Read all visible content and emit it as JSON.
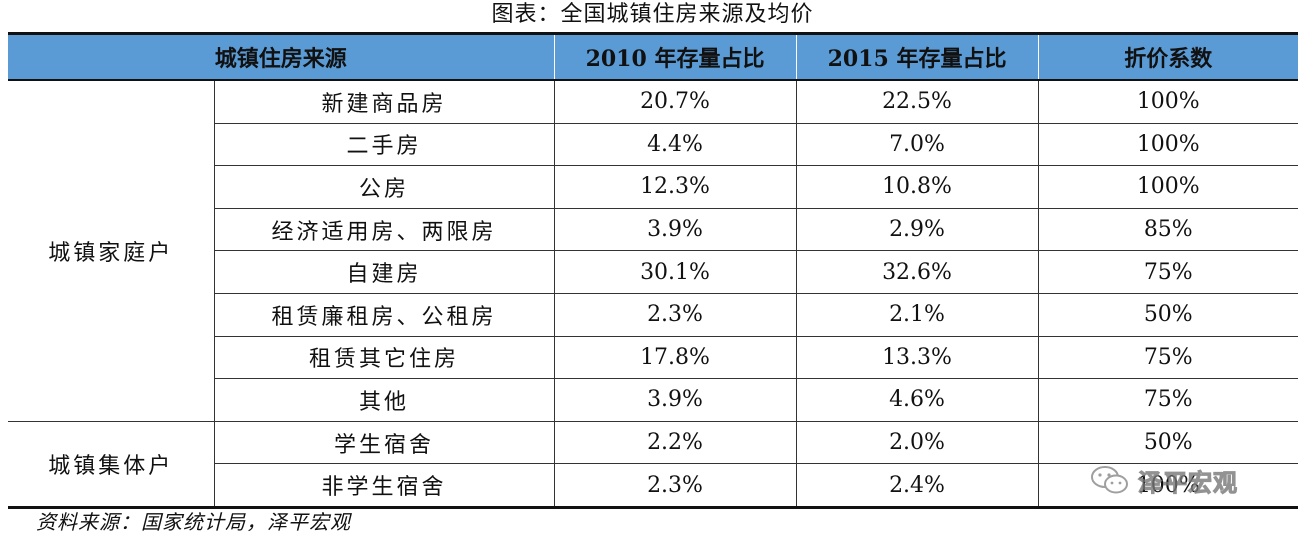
{
  "title": "图表：全国城镇住房来源及均价",
  "table": {
    "headers": [
      "城镇住房来源",
      "2010 年存量占比",
      "2015 年存量占比",
      "折价系数"
    ],
    "groups": [
      {
        "name": "城镇家庭户",
        "rows": [
          {
            "source": "新建商品房",
            "y2010": "20.7%",
            "y2015": "22.5%",
            "coef": "100%"
          },
          {
            "source": "二手房",
            "y2010": "4.4%",
            "y2015": "7.0%",
            "coef": "100%"
          },
          {
            "source": "公房",
            "y2010": "12.3%",
            "y2015": "10.8%",
            "coef": "100%"
          },
          {
            "source": "经济适用房、两限房",
            "y2010": "3.9%",
            "y2015": "2.9%",
            "coef": "85%"
          },
          {
            "source": "自建房",
            "y2010": "30.1%",
            "y2015": "32.6%",
            "coef": "75%"
          },
          {
            "source": "租赁廉租房、公租房",
            "y2010": "2.3%",
            "y2015": "2.1%",
            "coef": "50%"
          },
          {
            "source": "租赁其它住房",
            "y2010": "17.8%",
            "y2015": "13.3%",
            "coef": "75%"
          },
          {
            "source": "其他",
            "y2010": "3.9%",
            "y2015": "4.6%",
            "coef": "75%"
          }
        ]
      },
      {
        "name": "城镇集体户",
        "rows": [
          {
            "source": "学生宿舍",
            "y2010": "2.2%",
            "y2015": "2.0%",
            "coef": "50%"
          },
          {
            "source": "非学生宿舍",
            "y2010": "2.3%",
            "y2015": "2.4%",
            "coef": "100%"
          }
        ]
      }
    ]
  },
  "source_note": "资料来源：国家统计局，泽平宏观",
  "watermark": {
    "text": "泽平宏观",
    "icon": "wechat-icon"
  }
}
